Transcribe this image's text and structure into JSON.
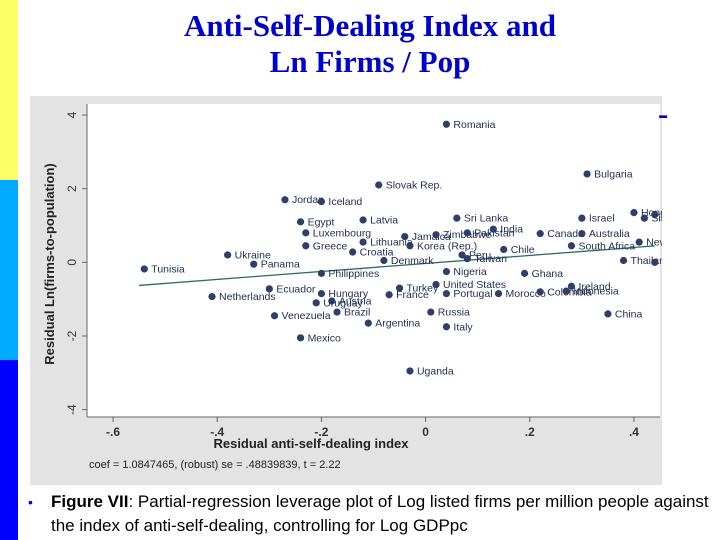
{
  "slide": {
    "title_line1": "Anti-Self-Dealing Index and",
    "title_line2": "Ln Firms / Pop",
    "title_dash": "-",
    "caption_label": "Figure VII",
    "caption_text": ":  Partial-regression leverage plot of Log listed firms per million people against the index of anti-self-dealing, controlling for Log GDPpc",
    "bullet": "•",
    "colors": {
      "title": "#0000cc",
      "points": "#2e3f6b",
      "fit_line": "#2a6e5c",
      "panel": "#e3e3e3",
      "plot_bg": "#ffffff"
    }
  },
  "chart_data": {
    "type": "scatter",
    "xlabel": "Residual anti-self-dealing index",
    "ylabel": "Residual Ln(firms-to-population)",
    "xlim": [
      -0.65,
      0.45
    ],
    "ylim": [
      -4.2,
      4.3
    ],
    "x_ticks": [
      -0.6,
      -0.4,
      -0.2,
      0,
      0.2,
      0.4
    ],
    "x_tick_labels": [
      "-.6",
      "-.4",
      "-.2",
      "0",
      ".2",
      ".4"
    ],
    "y_ticks": [
      -4,
      -2,
      0,
      2,
      4
    ],
    "y_tick_labels": [
      "-4",
      "-2",
      "0",
      "2",
      "4"
    ],
    "footnote": "coef = 1.0847465, (robust) se = .48839839, t = 2.22",
    "fit_line": {
      "slope": 1.0847465,
      "x_range": [
        -0.55,
        0.44
      ],
      "y_at_x0": -0.03
    },
    "points": [
      {
        "label": "Romania",
        "x": 0.04,
        "y": 3.75
      },
      {
        "label": "Slovak Rep.",
        "x": -0.09,
        "y": 2.1
      },
      {
        "label": "Bulgaria",
        "x": 0.31,
        "y": 2.4
      },
      {
        "label": "Jordan",
        "x": -0.27,
        "y": 1.7
      },
      {
        "label": "Iceland",
        "x": -0.2,
        "y": 1.65
      },
      {
        "label": "Hong Kong",
        "x": 0.4,
        "y": 1.35
      },
      {
        "label": "Malaysia",
        "x": 0.44,
        "y": 1.3
      },
      {
        "label": "Singapore",
        "x": 0.42,
        "y": 1.2
      },
      {
        "label": "Egypt",
        "x": -0.24,
        "y": 1.1
      },
      {
        "label": "Latvia",
        "x": -0.12,
        "y": 1.15
      },
      {
        "label": "Sri Lanka",
        "x": 0.06,
        "y": 1.2
      },
      {
        "label": "Israel",
        "x": 0.3,
        "y": 1.2
      },
      {
        "label": "Luxembourg",
        "x": -0.23,
        "y": 0.8
      },
      {
        "label": "Jamaica",
        "x": -0.04,
        "y": 0.7
      },
      {
        "label": "Zimbabwe",
        "x": 0.02,
        "y": 0.75
      },
      {
        "label": "Pakistan",
        "x": 0.08,
        "y": 0.8
      },
      {
        "label": "India",
        "x": 0.13,
        "y": 0.9
      },
      {
        "label": "Canada",
        "x": 0.22,
        "y": 0.78
      },
      {
        "label": "Australia",
        "x": 0.3,
        "y": 0.78
      },
      {
        "label": "New Zealand",
        "x": 0.41,
        "y": 0.55
      },
      {
        "label": "Greece",
        "x": -0.23,
        "y": 0.45
      },
      {
        "label": "Lithuania",
        "x": -0.12,
        "y": 0.55
      },
      {
        "label": "Korea (Rep.)",
        "x": -0.03,
        "y": 0.45
      },
      {
        "label": "Chile",
        "x": 0.15,
        "y": 0.35
      },
      {
        "label": "South Africa",
        "x": 0.28,
        "y": 0.45
      },
      {
        "label": "Ukraine",
        "x": -0.38,
        "y": 0.2
      },
      {
        "label": "Croatia",
        "x": -0.14,
        "y": 0.28
      },
      {
        "label": "Peru",
        "x": 0.07,
        "y": 0.2
      },
      {
        "label": "Taiwan",
        "x": 0.08,
        "y": 0.1
      },
      {
        "label": "Panama",
        "x": -0.33,
        "y": -0.05
      },
      {
        "label": "Denmark",
        "x": -0.08,
        "y": 0.05
      },
      {
        "label": "Thailand",
        "x": 0.38,
        "y": 0.05
      },
      {
        "label": "United Kingdom",
        "x": 0.44,
        "y": 0.0
      },
      {
        "label": "Tunisia",
        "x": -0.54,
        "y": -0.18
      },
      {
        "label": "Philippines",
        "x": -0.2,
        "y": -0.3
      },
      {
        "label": "Nigeria",
        "x": 0.04,
        "y": -0.25
      },
      {
        "label": "Ghana",
        "x": 0.19,
        "y": -0.3
      },
      {
        "label": "Ecuador",
        "x": -0.3,
        "y": -0.72
      },
      {
        "label": "United States",
        "x": 0.02,
        "y": -0.6
      },
      {
        "label": "Ireland",
        "x": 0.28,
        "y": -0.65
      },
      {
        "label": "Turkey",
        "x": -0.05,
        "y": -0.7
      },
      {
        "label": "Netherlands",
        "x": -0.41,
        "y": -0.93
      },
      {
        "label": "Hungary",
        "x": -0.2,
        "y": -0.85
      },
      {
        "label": "France",
        "x": -0.07,
        "y": -0.88
      },
      {
        "label": "Portugal",
        "x": 0.04,
        "y": -0.85
      },
      {
        "label": "Morocco",
        "x": 0.14,
        "y": -0.85
      },
      {
        "label": "Colombia",
        "x": 0.22,
        "y": -0.8
      },
      {
        "label": "Indonesia",
        "x": 0.27,
        "y": -0.78
      },
      {
        "label": "Austria",
        "x": -0.18,
        "y": -1.05
      },
      {
        "label": "Uruguay",
        "x": -0.21,
        "y": -1.1
      },
      {
        "label": "Brazil",
        "x": -0.17,
        "y": -1.35
      },
      {
        "label": "Venezuela",
        "x": -0.29,
        "y": -1.45
      },
      {
        "label": "Russia",
        "x": 0.01,
        "y": -1.35
      },
      {
        "label": "China",
        "x": 0.35,
        "y": -1.4
      },
      {
        "label": "Argentina",
        "x": -0.11,
        "y": -1.65
      },
      {
        "label": "Italy",
        "x": 0.04,
        "y": -1.75
      },
      {
        "label": "Mexico",
        "x": -0.24,
        "y": -2.05
      },
      {
        "label": "Uganda",
        "x": -0.03,
        "y": -2.95
      }
    ]
  }
}
